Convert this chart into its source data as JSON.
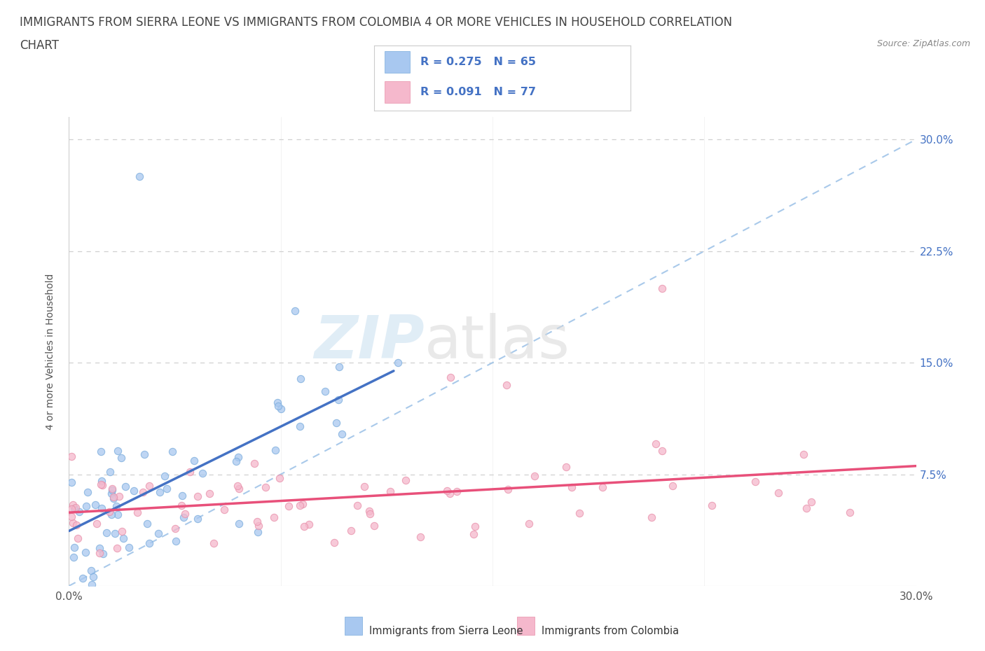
{
  "title_line1": "IMMIGRANTS FROM SIERRA LEONE VS IMMIGRANTS FROM COLOMBIA 4 OR MORE VEHICLES IN HOUSEHOLD CORRELATION",
  "title_line2": "CHART",
  "source_text": "Source: ZipAtlas.com",
  "ylabel": "4 or more Vehicles in Household",
  "xlim": [
    0.0,
    0.3
  ],
  "ylim": [
    0.0,
    0.315
  ],
  "sierra_leone_color": "#a8c8f0",
  "colombia_color": "#f5b8cc",
  "sierra_leone_edge": "#7aacdc",
  "colombia_edge": "#e890aa",
  "sierra_leone_line_color": "#4472c4",
  "colombia_line_color": "#e8507a",
  "diagonal_color": "#a0c4e8",
  "grid_color": "#d0d0d0",
  "R_sierra": 0.275,
  "N_sierra": 65,
  "R_colombia": 0.091,
  "N_colombia": 77,
  "legend_label_sierra": "Immigrants from Sierra Leone",
  "legend_label_colombia": "Immigrants from Colombia",
  "watermark_zip": "ZIP",
  "watermark_atlas": "atlas",
  "title_fontsize": 12,
  "axis_label_fontsize": 10,
  "tick_fontsize": 11,
  "tick_color": "#4472c4",
  "right_tick_color": "#4472c4",
  "bottom_tick_color": "#555555"
}
